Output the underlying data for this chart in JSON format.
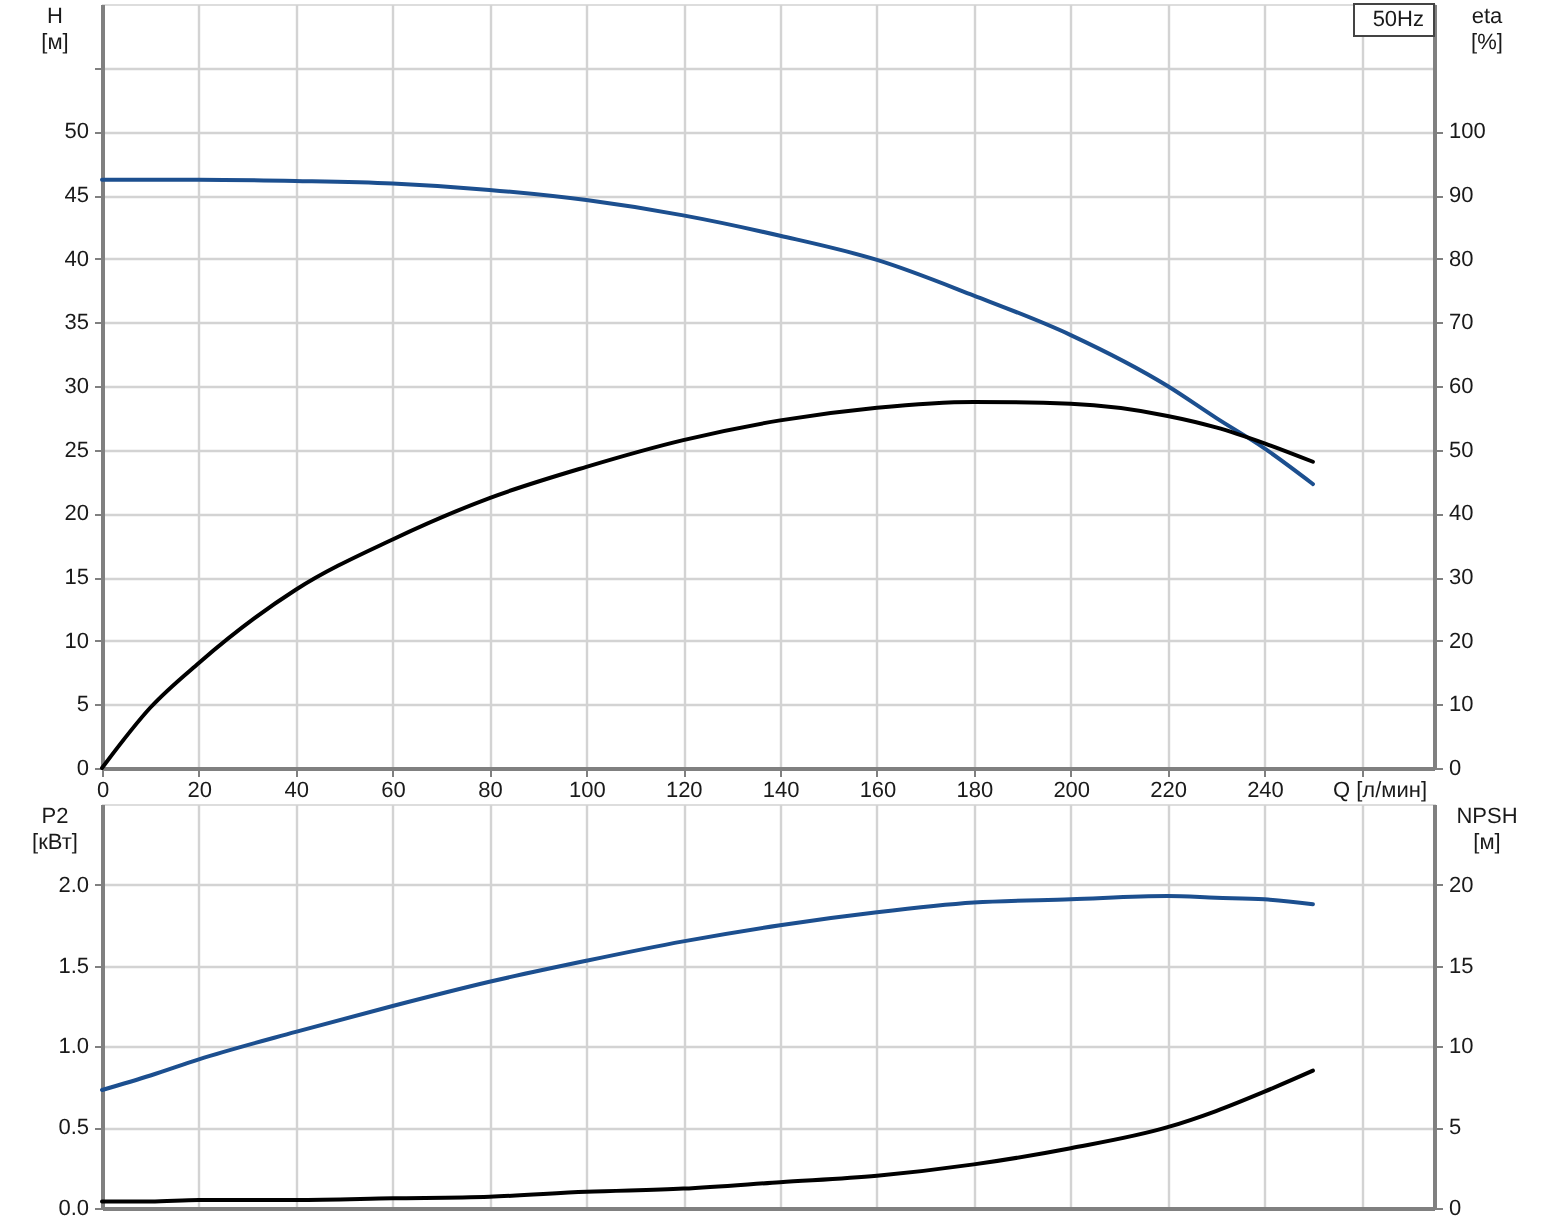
{
  "chart_data": [
    {
      "type": "line",
      "annotations": [
        "50Hz"
      ],
      "xlabel": "Q [л/мин]",
      "ylabel": "H [м]",
      "y2label": "eta [%]",
      "x": [
        0,
        10,
        20,
        40,
        60,
        80,
        100,
        120,
        140,
        160,
        180,
        200,
        220,
        230,
        240,
        250
      ],
      "xlim": [
        0,
        275
      ],
      "xticks": [
        0,
        20,
        40,
        60,
        80,
        100,
        120,
        140,
        160,
        180,
        200,
        220,
        240,
        {
          "value": 260,
          "label": null
        }
      ],
      "ylim": [
        0,
        60
      ],
      "yticks": [
        0,
        5,
        10,
        15,
        20,
        25,
        30,
        35,
        40,
        45,
        50,
        {
          "value": 55,
          "label": null
        }
      ],
      "y2lim": [
        0,
        120
      ],
      "y2ticks": [
        0,
        10,
        20,
        30,
        40,
        50,
        60,
        70,
        80,
        90,
        100
      ],
      "grid": true,
      "series": [
        {
          "color": "#1c4f8f",
          "values": [
            46.2,
            46.2,
            46.2,
            46.1,
            45.9,
            45.4,
            44.6,
            43.4,
            41.8,
            39.9,
            37.1,
            34.0,
            30.0,
            27.5,
            25.1,
            22.3
          ]
        },
        {
          "color": "#000000",
          "axis": "y2",
          "values": [
            0,
            9.5,
            16.5,
            28,
            35.9,
            42.4,
            47.3,
            51.5,
            54.6,
            56.6,
            57.5,
            57.2,
            55.3,
            53.5,
            51.0,
            48.1
          ]
        }
      ]
    },
    {
      "type": "line",
      "ylabel": "P2 [кВт]",
      "y2label": "NPSH [м]",
      "x": [
        0,
        10,
        20,
        40,
        60,
        80,
        100,
        120,
        140,
        160,
        180,
        200,
        220,
        230,
        240,
        250
      ],
      "xlim": [
        0,
        275
      ],
      "xticks": [
        0,
        20,
        40,
        60,
        80,
        100,
        120,
        140,
        160,
        180,
        200,
        220,
        240,
        {
          "value": 260,
          "label": null
        }
      ],
      "ylim": [
        0,
        2.5
      ],
      "yticks": [
        {
          "value": 0,
          "label": "0.0"
        },
        0.5,
        {
          "value": 1,
          "label": "1.0"
        },
        1.5,
        {
          "value": 2,
          "label": "2.0"
        }
      ],
      "y2lim": [
        0,
        25
      ],
      "y2ticks": [
        0,
        5,
        10,
        15,
        20
      ],
      "grid": true,
      "tick_labels": "y",
      "series": [
        {
          "color": "#1c4f8f",
          "values": [
            0.73,
            0.82,
            0.92,
            1.09,
            1.25,
            1.4,
            1.53,
            1.65,
            1.75,
            1.83,
            1.89,
            1.91,
            1.93,
            1.92,
            1.91,
            1.88
          ]
        },
        {
          "color": "#000000",
          "axis": "y2",
          "values": [
            0.4,
            0.4,
            0.5,
            0.5,
            0.6,
            0.7,
            1.0,
            1.2,
            1.6,
            2.0,
            2.7,
            3.7,
            5.0,
            6.0,
            7.2,
            8.5
          ]
        }
      ]
    }
  ]
}
